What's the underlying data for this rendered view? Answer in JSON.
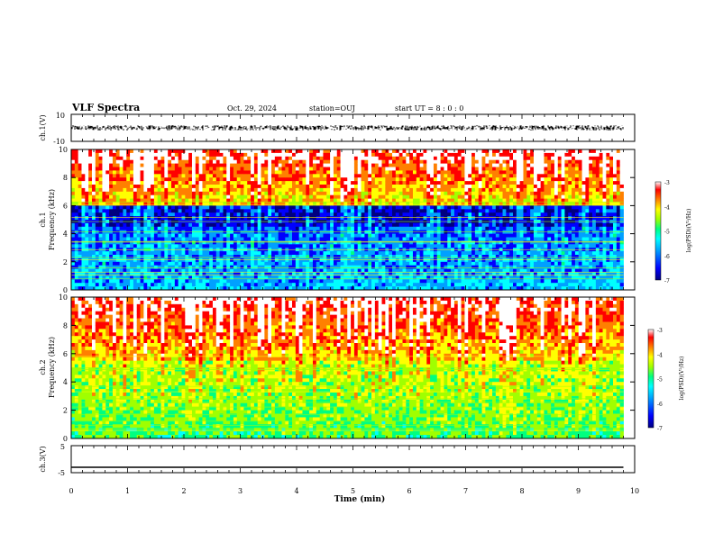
{
  "header": {
    "title": "VLF Spectra",
    "date": "Oct. 29, 2024",
    "station": "station=OUJ",
    "start": "start  UT =   8  : 0  : 0"
  },
  "colors": {
    "spectrogram_scale": [
      "#000080",
      "#0000ff",
      "#00a0ff",
      "#00ffff",
      "#00ff80",
      "#a0ff00",
      "#ffff00",
      "#ff8000",
      "#ff0000",
      "#ffffff"
    ]
  },
  "chart_data": [
    {
      "type": "line",
      "panel": "ch1-waveform",
      "ylabel": "ch.1(V)",
      "ylim": [
        -10,
        10
      ],
      "yticks": [
        "10",
        "-10"
      ],
      "x": [
        0,
        10
      ],
      "description_values": "noise band roughly between -2 and 2 V for the full 0–9.8 min",
      "band": [
        -2,
        2
      ],
      "xlim": [
        0,
        9.8
      ]
    },
    {
      "type": "heatmap",
      "panel": "ch1-spectrogram",
      "ylabel": "ch.1\nFrequency (kHz)",
      "ylim": [
        0,
        10
      ],
      "yticks": [
        "0",
        "2",
        "4",
        "6",
        "8",
        "10"
      ],
      "xlim": [
        0,
        9.8
      ],
      "colorbar": {
        "label": "log(PSD)(V²/Hz)",
        "ticks": [
          "-3",
          "-4",
          "-5",
          "-6",
          "-7"
        ],
        "range": [
          -7,
          -3
        ]
      }
    },
    {
      "type": "heatmap",
      "panel": "ch2-spectrogram",
      "ylabel": "ch.2\nFrequency (kHz)",
      "ylim": [
        0,
        10
      ],
      "yticks": [
        "0",
        "2",
        "4",
        "6",
        "8",
        "10"
      ],
      "xlim": [
        0,
        9.8
      ],
      "colorbar": {
        "label": "log(PSD)(V²/Hz)",
        "ticks": [
          "-3",
          "-4",
          "-5",
          "-6",
          "-7"
        ],
        "range": [
          -7,
          -3
        ]
      }
    },
    {
      "type": "line",
      "panel": "ch3-waveform",
      "ylabel": "ch.3(V)",
      "ylim": [
        -5,
        5
      ],
      "yticks": [
        "5",
        "-5"
      ],
      "x": [
        0,
        9.8
      ],
      "y": [
        -3,
        -3
      ]
    }
  ],
  "xaxis": {
    "label": "Time (min)",
    "ticks": [
      "0",
      "1",
      "2",
      "3",
      "4",
      "5",
      "6",
      "7",
      "8",
      "9",
      "10"
    ],
    "xlim": [
      0,
      10
    ]
  }
}
